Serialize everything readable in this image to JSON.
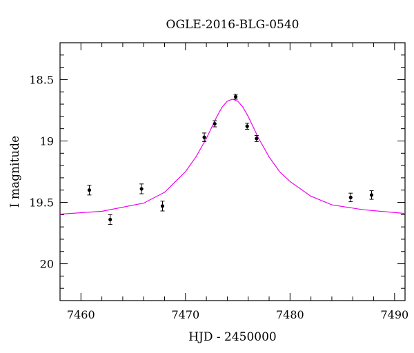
{
  "chart_data": {
    "type": "scatter",
    "title": "OGLE-2016-BLG-0540",
    "xlabel": "HJD - 2450000",
    "ylabel": "I magnitude",
    "xlim": [
      7458,
      7491
    ],
    "ylim": [
      20.3,
      18.2
    ],
    "y_inverted": true,
    "grid": false,
    "x_ticks": [
      "7460",
      "7470",
      "7480",
      "7490"
    ],
    "y_ticks": [
      "18.5",
      "19",
      "19.5",
      "20"
    ],
    "x_tick_values": [
      7460,
      7470,
      7480,
      7490
    ],
    "y_tick_values": [
      18.5,
      19.0,
      19.5,
      20.0
    ],
    "points": [
      {
        "x": 7460.8,
        "y": 19.4,
        "err": 0.04
      },
      {
        "x": 7462.8,
        "y": 19.64,
        "err": 0.04
      },
      {
        "x": 7465.8,
        "y": 19.39,
        "err": 0.04
      },
      {
        "x": 7467.8,
        "y": 19.53,
        "err": 0.04
      },
      {
        "x": 7471.8,
        "y": 18.97,
        "err": 0.035
      },
      {
        "x": 7472.8,
        "y": 18.86,
        "err": 0.025
      },
      {
        "x": 7474.8,
        "y": 18.64,
        "err": 0.02
      },
      {
        "x": 7475.9,
        "y": 18.88,
        "err": 0.025
      },
      {
        "x": 7476.8,
        "y": 18.98,
        "err": 0.025
      },
      {
        "x": 7485.8,
        "y": 19.46,
        "err": 0.035
      },
      {
        "x": 7487.8,
        "y": 19.44,
        "err": 0.035
      }
    ],
    "model": {
      "name": "",
      "color": "#ee00ee",
      "x": [
        7458,
        7462,
        7466,
        7468,
        7470,
        7471,
        7472,
        7472.5,
        7473,
        7473.5,
        7474,
        7474.5,
        7475,
        7475.5,
        7476,
        7476.5,
        7477,
        7478,
        7479,
        7480,
        7482,
        7484,
        7487,
        7491
      ],
      "y": [
        19.596,
        19.573,
        19.506,
        19.418,
        19.25,
        19.13,
        18.98,
        18.89,
        18.8,
        18.725,
        18.675,
        18.66,
        18.675,
        18.725,
        18.8,
        18.89,
        18.98,
        19.13,
        19.25,
        19.33,
        19.45,
        19.52,
        19.56,
        19.59
      ]
    },
    "colors": {
      "points": "#000000",
      "model": "#ee00ee"
    }
  }
}
